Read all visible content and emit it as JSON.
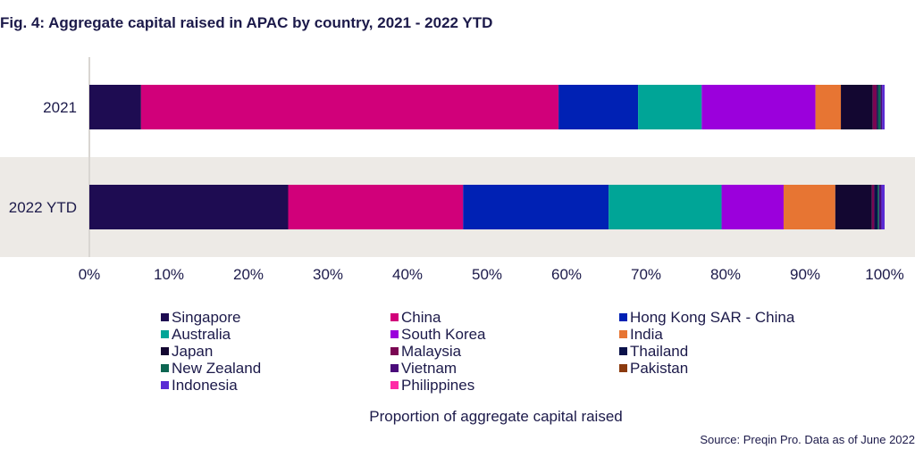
{
  "title": "Fig. 4: Aggregate capital raised in APAC by country, 2021 - 2022 YTD",
  "source": "Source: Preqin Pro. Data as of June 2022",
  "colors": {
    "Singapore": "#1e0c52",
    "China": "#d1007a",
    "Hong Kong SAR - China": "#0021b4",
    "Australia": "#00a597",
    "South Korea": "#9b00dc",
    "India": "#e77533",
    "Japan": "#130731",
    "Malaysia": "#7a0552",
    "Thailand": "#0a124a",
    "New Zealand": "#0d6652",
    "Vietnam": "#4a0b7a",
    "Pakistan": "#8b3a0e",
    "Indonesia": "#5a2bd4",
    "Philippines": "#ff2aa6"
  },
  "chart_data": {
    "type": "bar",
    "orientation": "horizontal",
    "stacked": true,
    "xlabel": "Proportion of aggregate capital raised",
    "ylabel": "",
    "xlim": [
      0,
      100
    ],
    "x_ticks": [
      "0%",
      "10%",
      "20%",
      "30%",
      "40%",
      "50%",
      "60%",
      "70%",
      "80%",
      "90%",
      "100%"
    ],
    "categories": [
      "2021",
      "2022 YTD"
    ],
    "series": [
      {
        "name": "Singapore",
        "values": [
          6.5,
          25.0
        ]
      },
      {
        "name": "China",
        "values": [
          52.5,
          22.0
        ]
      },
      {
        "name": "Hong Kong SAR - China",
        "values": [
          10.0,
          18.3
        ]
      },
      {
        "name": "Australia",
        "values": [
          8.0,
          14.2
        ]
      },
      {
        "name": "South Korea",
        "values": [
          14.3,
          7.8
        ]
      },
      {
        "name": "India",
        "values": [
          3.2,
          6.5
        ]
      },
      {
        "name": "Japan",
        "values": [
          4.0,
          4.6
        ]
      },
      {
        "name": "Malaysia",
        "values": [
          0.5,
          0.3
        ]
      },
      {
        "name": "Thailand",
        "values": [
          0.2,
          0.4
        ]
      },
      {
        "name": "New Zealand",
        "values": [
          0.3,
          0.2
        ]
      },
      {
        "name": "Vietnam",
        "values": [
          0.2,
          0.3
        ]
      },
      {
        "name": "Pakistan",
        "values": [
          0.0,
          0.0
        ]
      },
      {
        "name": "Indonesia",
        "values": [
          0.3,
          0.4
        ]
      },
      {
        "name": "Philippines",
        "values": [
          0.0,
          0.0
        ]
      }
    ],
    "legend_position": "bottom"
  }
}
